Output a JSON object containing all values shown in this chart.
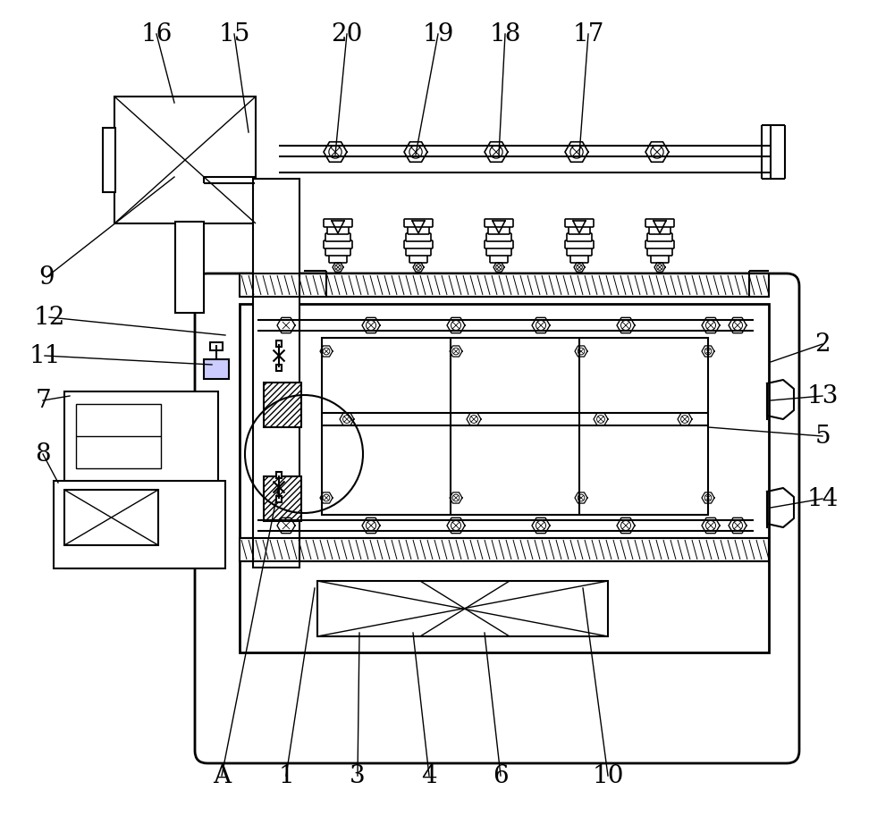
{
  "bg_color": "#ffffff",
  "line_color": "#000000",
  "figsize": [
    10.0,
    9.13
  ],
  "dpi": 100,
  "labels": [
    [
      "16",
      175,
      38,
      195,
      115
    ],
    [
      "15",
      262,
      38,
      278,
      148
    ],
    [
      "20",
      388,
      38,
      375,
      173
    ],
    [
      "19",
      490,
      38,
      465,
      173
    ],
    [
      "18",
      565,
      38,
      558,
      173
    ],
    [
      "17",
      658,
      38,
      648,
      173
    ],
    [
      "9",
      52,
      310,
      195,
      198
    ],
    [
      "12",
      55,
      355,
      252,
      375
    ],
    [
      "11",
      50,
      398,
      237,
      408
    ],
    [
      "7",
      48,
      448,
      78,
      443
    ],
    [
      "8",
      48,
      508,
      65,
      540
    ],
    [
      "2",
      920,
      385,
      862,
      405
    ],
    [
      "13",
      920,
      443,
      862,
      448
    ],
    [
      "5",
      920,
      488,
      792,
      478
    ],
    [
      "14",
      920,
      558,
      862,
      568
    ],
    [
      "A",
      248,
      868,
      312,
      543
    ],
    [
      "1",
      320,
      868,
      352,
      658
    ],
    [
      "3",
      400,
      868,
      402,
      708
    ],
    [
      "4",
      480,
      868,
      462,
      708
    ],
    [
      "6",
      560,
      868,
      542,
      708
    ],
    [
      "10",
      680,
      868,
      652,
      658
    ]
  ]
}
